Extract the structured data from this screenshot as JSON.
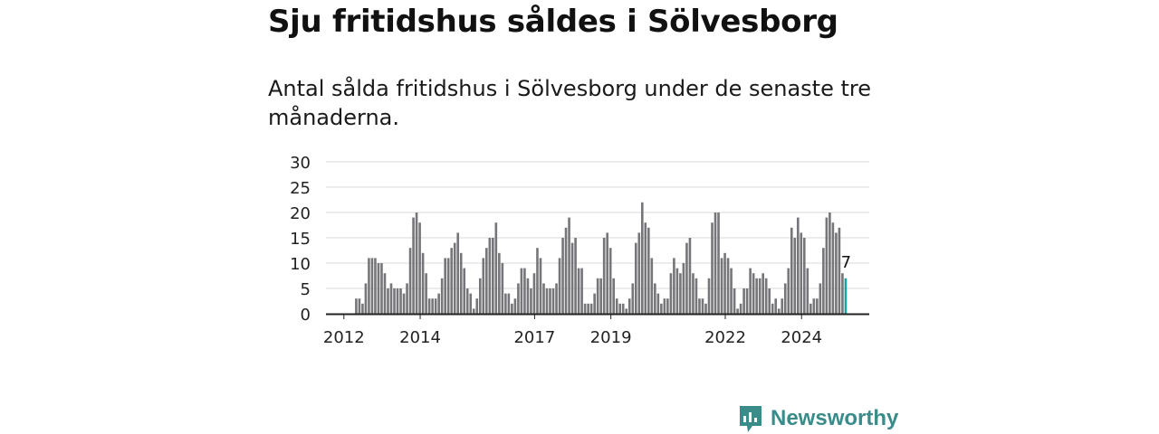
{
  "title": "Sju fritidshus såldes i Sölvesborg",
  "subtitle": "Antal sålda fritidshus i Sölvesborg under de senaste tre månaderna.",
  "brand": "Newsworthy",
  "colors": {
    "bar": "#76767a",
    "highlight": "#1aa3a3",
    "grid": "#d9d9d9",
    "axis": "#222222",
    "brand": "#3a8c8a"
  },
  "chart_data": {
    "type": "bar",
    "start_month": "2011-08",
    "y_ticks": [
      0,
      5,
      10,
      15,
      20,
      25,
      30
    ],
    "ylim": [
      0,
      30
    ],
    "x_ticks": [
      {
        "label": "2012",
        "month": "2012-01"
      },
      {
        "label": "2014",
        "month": "2014-01"
      },
      {
        "label": "2017",
        "month": "2017-01"
      },
      {
        "label": "2019",
        "month": "2019-01"
      },
      {
        "label": "2022",
        "month": "2022-01"
      },
      {
        "label": "2024",
        "month": "2024-01"
      }
    ],
    "values": [
      0,
      0,
      0,
      0,
      0,
      0,
      0,
      0,
      0,
      3,
      3,
      2,
      6,
      11,
      11,
      11,
      10,
      10,
      8,
      5,
      6,
      5,
      5,
      5,
      4,
      6,
      13,
      19,
      20,
      18,
      12,
      8,
      3,
      3,
      3,
      4,
      7,
      11,
      11,
      13,
      14,
      16,
      12,
      9,
      5,
      4,
      1,
      3,
      7,
      11,
      13,
      15,
      15,
      18,
      12,
      10,
      4,
      4,
      2,
      3,
      6,
      9,
      9,
      7,
      5,
      8,
      13,
      11,
      6,
      5,
      5,
      5,
      6,
      11,
      15,
      17,
      19,
      14,
      15,
      9,
      9,
      2,
      2,
      2,
      4,
      7,
      7,
      15,
      16,
      13,
      7,
      3,
      2,
      2,
      1,
      3,
      6,
      14,
      16,
      22,
      18,
      17,
      11,
      6,
      4,
      2,
      3,
      3,
      8,
      11,
      9,
      8,
      10,
      14,
      15,
      8,
      7,
      3,
      3,
      2,
      7,
      18,
      20,
      20,
      11,
      12,
      11,
      9,
      5,
      1,
      2,
      5,
      5,
      9,
      8,
      7,
      7,
      8,
      7,
      5,
      2,
      3,
      1,
      3,
      6,
      9,
      17,
      15,
      19,
      16,
      15,
      9,
      2,
      3,
      3,
      6,
      13,
      19,
      20,
      18,
      16,
      17,
      8,
      7
    ],
    "highlight_label": "7"
  }
}
